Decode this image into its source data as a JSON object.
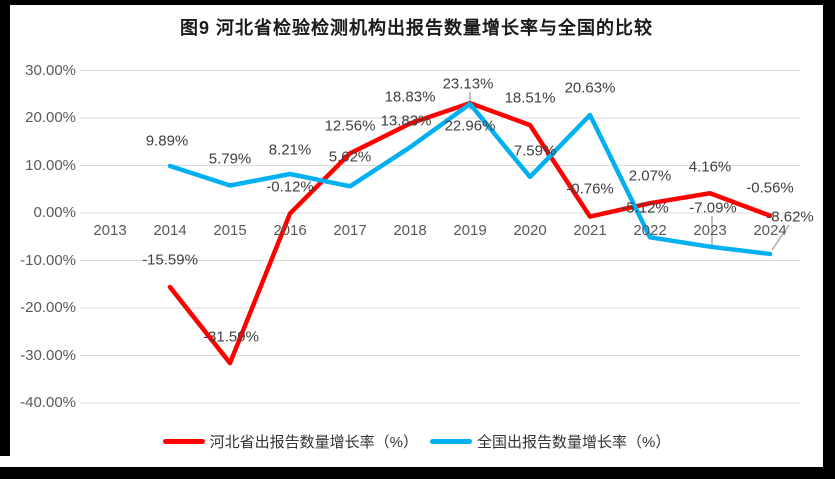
{
  "title": "图9 河北省检验检测机构出报告数量增长率与全国的比较",
  "chart_data": {
    "type": "line",
    "title": "图9 河北省检验检测机构出报告数量增长率与全国的比较",
    "categories": [
      "2013",
      "2014",
      "2015",
      "2016",
      "2017",
      "2018",
      "2019",
      "2020",
      "2021",
      "2022",
      "2023",
      "2024"
    ],
    "series": [
      {
        "name": "河北省出报告数量增长率（%）",
        "color": "#FF0000",
        "values": [
          null,
          -15.59,
          -31.59,
          -0.12,
          12.56,
          18.83,
          23.13,
          18.51,
          -0.76,
          2.07,
          4.16,
          -0.56
        ]
      },
      {
        "name": "全国出报告数量增长率（%）",
        "color": "#00B0F0",
        "values": [
          null,
          9.89,
          5.79,
          8.21,
          5.62,
          13.83,
          22.96,
          7.59,
          20.63,
          -5.12,
          -7.09,
          -8.62
        ]
      }
    ],
    "y_tick_labels": [
      "30.00%",
      "20.00%",
      "10.00%",
      "0.00%",
      "-10.00%",
      "-20.00%",
      "-30.00%",
      "-40.00%"
    ],
    "y_tick_values": [
      30,
      20,
      10,
      0,
      -10,
      -20,
      -30,
      -40
    ],
    "ylim": [
      -40,
      30
    ],
    "xlabel": "",
    "ylabel": "",
    "grid": "horizontal",
    "gridline_color": "#D9D9D9",
    "leader_line_color": "#A6A6A6",
    "data_labels": true,
    "legend_position": "bottom"
  },
  "legend": {
    "item1": "河北省出报告数量增长率（%）",
    "item2": "全国出报告数量增长率（%）"
  }
}
